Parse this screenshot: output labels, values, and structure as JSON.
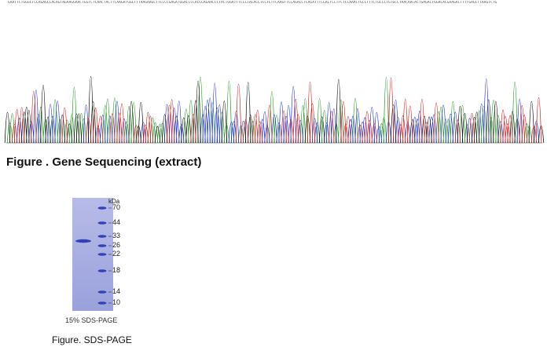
{
  "sequencing": {
    "bases": "GAATTCTGGGCTCCAGAGCCACAGTAGAAGGAACTGGTCTCAACTACTTCAAGATGGCTTTAAGAAGCTTCCCCGAGATGGACCCCACCCAGAACCCTACTGGATTTCCCTACACCTCCTCTTCAAGTTCCAGACCTCAGATTTCCACTCCTTCTCCAAACTGCCTTTCTGCCCTGTGCCTAACAACACTGAGACTGGACACGAAGACTTTTGAGCTTAAGTCTG",
    "caption": "Figure . Gene Sequencing (extract)",
    "trace_colors": {
      "A": "#2a9a2a",
      "C": "#2233cc",
      "G": "#111111",
      "T": "#cc2222"
    }
  },
  "sds_page": {
    "unit_label": "kDa",
    "markers": [
      "70",
      "44",
      "33",
      "26",
      "22",
      "18",
      "14",
      "10"
    ],
    "gel_label": "15% SDS-PAGE",
    "caption": "Figure. SDS-PAGE",
    "gel_color": "#a8aee0",
    "band_color": "#3440b8"
  }
}
